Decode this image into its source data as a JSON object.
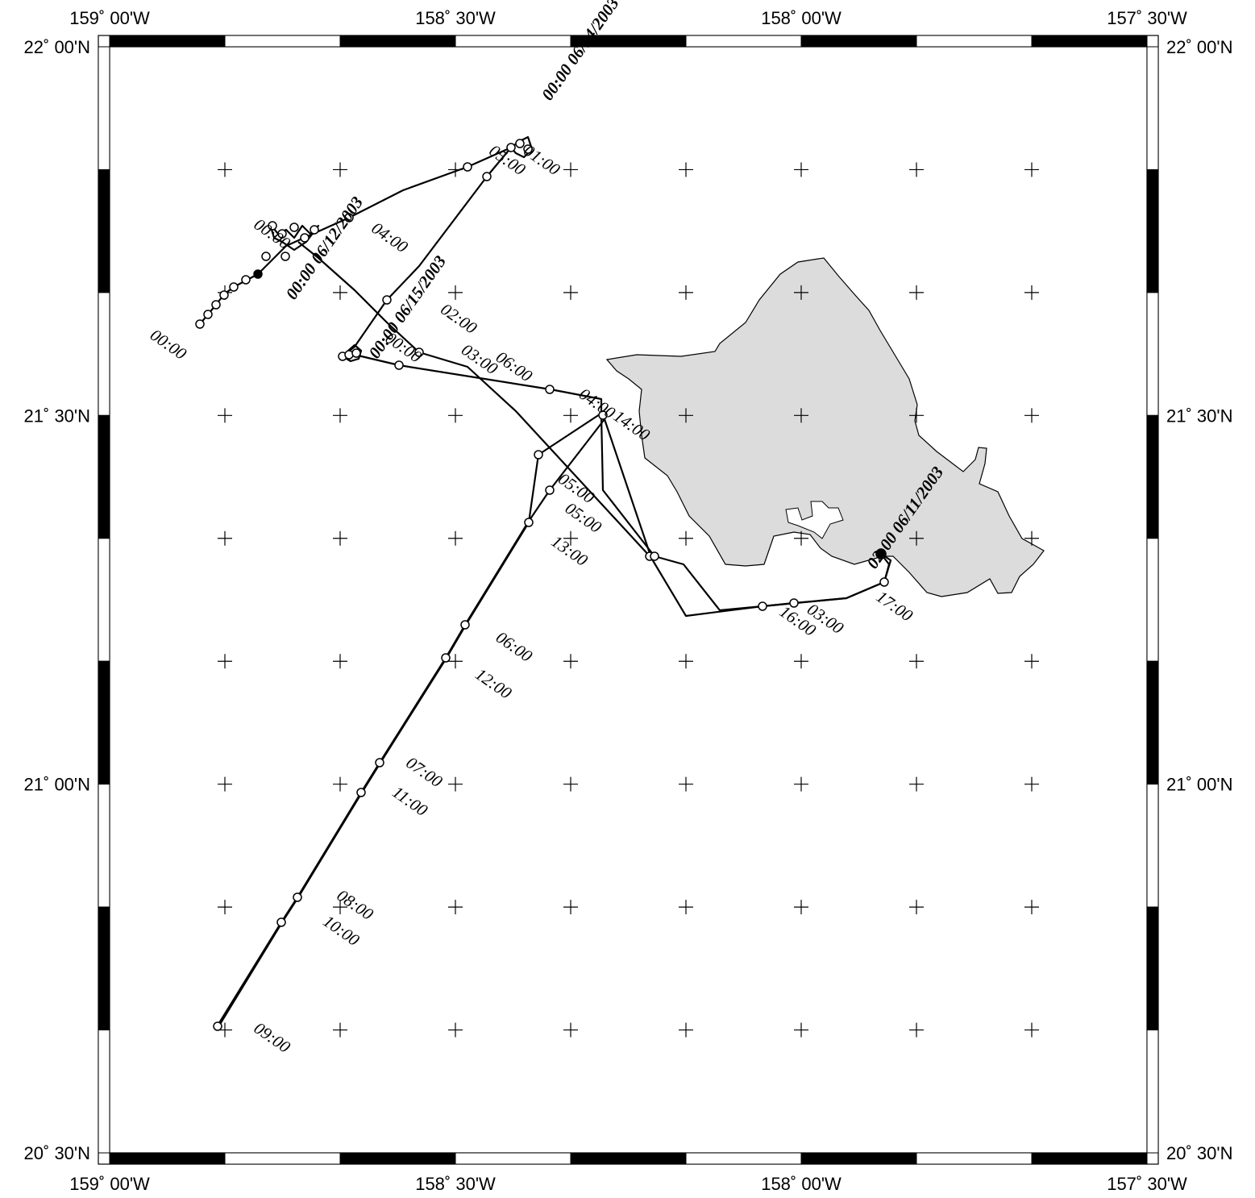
{
  "map": {
    "lon_labels": [
      "159˚ 00'W",
      "158˚ 30'W",
      "158˚ 00'W",
      "157˚ 30'W"
    ],
    "lat_labels": [
      "22˚ 00'N",
      "21˚ 30'N",
      "21˚ 00'N",
      "20˚ 30'N"
    ],
    "lon_range": [
      -159.0,
      -157.5
    ],
    "lat_range": [
      20.5,
      22.0
    ],
    "land_fill": "#dcdcdc",
    "track_color": "#000000",
    "grid_step_minutes": 10
  },
  "track_labels": [
    {
      "text": "02:00 06/11/2003",
      "lon": -157.9,
      "lat": 21.295,
      "style": "bold"
    },
    {
      "text": "17:00",
      "lon": -157.9,
      "lat": 21.255
    },
    {
      "text": "03:00",
      "lon": -158.0,
      "lat": 21.238
    },
    {
      "text": "16:00",
      "lon": -158.04,
      "lat": 21.235
    },
    {
      "text": "14:00",
      "lon": -158.28,
      "lat": 21.5
    },
    {
      "text": "05:00",
      "lon": -158.36,
      "lat": 21.415
    },
    {
      "text": "05:00",
      "lon": -158.35,
      "lat": 21.375
    },
    {
      "text": "13:00",
      "lon": -158.37,
      "lat": 21.33
    },
    {
      "text": "06:00",
      "lon": -158.45,
      "lat": 21.2
    },
    {
      "text": "12:00",
      "lon": -158.48,
      "lat": 21.15
    },
    {
      "text": "07:00",
      "lon": -158.58,
      "lat": 21.03
    },
    {
      "text": "11:00",
      "lon": -158.6,
      "lat": 20.99
    },
    {
      "text": "08:00",
      "lon": -158.68,
      "lat": 20.85
    },
    {
      "text": "10:00",
      "lon": -158.7,
      "lat": 20.815
    },
    {
      "text": "09:00",
      "lon": -158.8,
      "lat": 20.67
    },
    {
      "text": "04:00",
      "lon": -158.33,
      "lat": 21.53
    },
    {
      "text": "06:00",
      "lon": -158.45,
      "lat": 21.58
    },
    {
      "text": "02:00",
      "lon": -158.53,
      "lat": 21.645
    },
    {
      "text": "03:00",
      "lon": -158.5,
      "lat": 21.59
    },
    {
      "text": "04:00",
      "lon": -158.63,
      "lat": 21.755
    },
    {
      "text": "05:00",
      "lon": -158.46,
      "lat": 21.86
    },
    {
      "text": "01:00",
      "lon": -158.41,
      "lat": 21.86
    },
    {
      "text": "00:00 06/14/2003",
      "lon": -158.37,
      "lat": 21.93,
      "style": "bold"
    },
    {
      "text": "00:00 06/15/2003",
      "lon": -158.62,
      "lat": 21.58,
      "style": "bold"
    },
    {
      "text": "00:00 06/12/2003",
      "lon": -158.74,
      "lat": 21.66,
      "style": "bold"
    },
    {
      "text": "00:00",
      "lon": -158.95,
      "lat": 21.61
    },
    {
      "text": "00:00",
      "lon": -158.8,
      "lat": 21.76
    },
    {
      "text": "00:00",
      "lon": -158.61,
      "lat": 21.606
    }
  ]
}
